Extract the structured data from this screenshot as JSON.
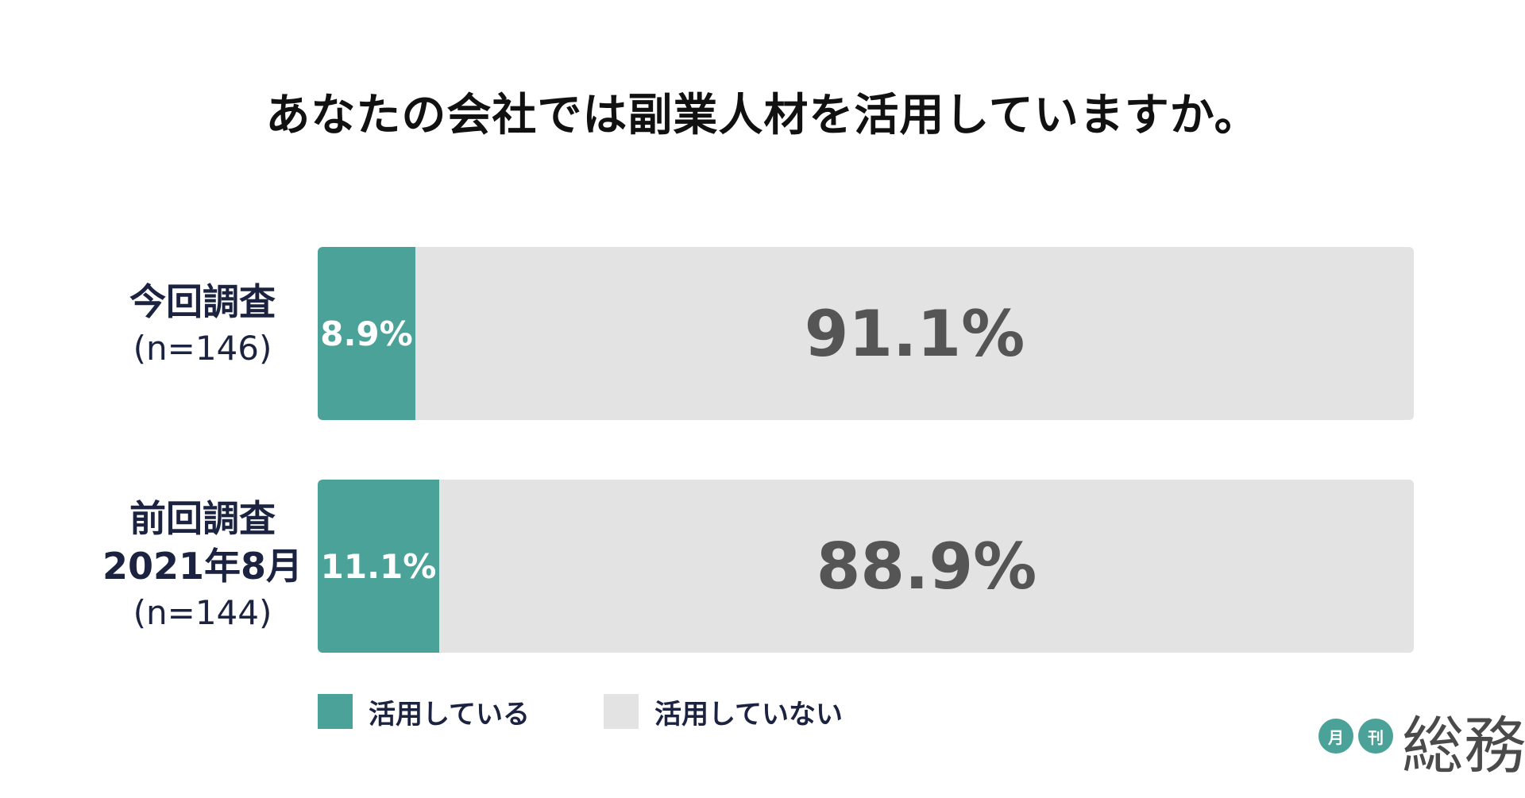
{
  "chart_data": {
    "type": "bar",
    "orientation": "horizontal-stacked-100",
    "title": "あなたの会社では副業人材を活用していますか。",
    "categories": [
      {
        "label": "今回調査",
        "n": "(n=146)"
      },
      {
        "label": "前回調査\n2021年8月",
        "n": "(n=144)"
      }
    ],
    "series": [
      {
        "name": "活用している",
        "color": "#4aa298",
        "values": [
          8.9,
          11.1
        ],
        "labels": [
          "8.9%",
          "11.1%"
        ]
      },
      {
        "name": "活用していない",
        "color": "#e3e3e3",
        "values": [
          91.1,
          88.9
        ],
        "labels": [
          "91.1%",
          "88.9%"
        ]
      }
    ],
    "xlim": [
      0,
      100
    ],
    "grid": false,
    "legend_position": "bottom"
  },
  "logo": {
    "circle1": "月",
    "circle2": "刊",
    "text": "総務"
  }
}
